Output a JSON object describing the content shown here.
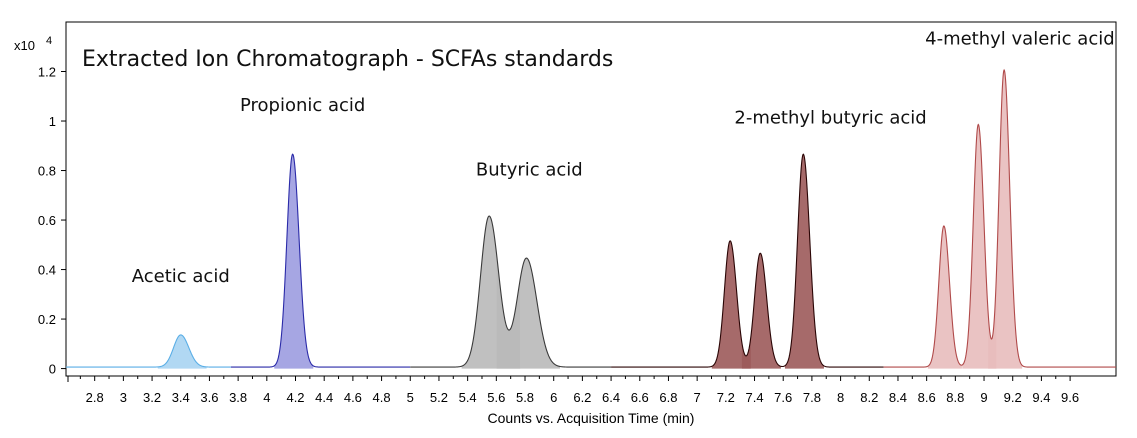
{
  "chart_data": {
    "type": "line",
    "title": "Extracted Ion Chromatograph - SCFAs standards",
    "xlabel": "Counts vs. Acquisition Time (min)",
    "y_multiplier": {
      "base": "x10",
      "exponent": "4"
    },
    "xlim": [
      2.6,
      9.92
    ],
    "ylim": [
      -0.03,
      1.4
    ],
    "x_ticks": [
      "2.8",
      "3",
      "3.2",
      "3.4",
      "3.6",
      "3.8",
      "4",
      "4.2",
      "4.4",
      "4.6",
      "4.8",
      "5",
      "5.2",
      "5.4",
      "5.6",
      "5.8",
      "6",
      "6.2",
      "6.4",
      "6.6",
      "6.8",
      "7",
      "7.2",
      "7.4",
      "7.6",
      "7.8",
      "8",
      "8.2",
      "8.4",
      "8.6",
      "8.8",
      "9",
      "9.2",
      "9.4",
      "9.6"
    ],
    "y_ticks": [
      "0",
      "0.2",
      "0.4",
      "0.6",
      "0.8",
      "1",
      "1.2"
    ],
    "series": [
      {
        "name": "Acetic acid",
        "color": "#5aaee6",
        "fill": "#a8d4f2",
        "x_range": [
          2.6,
          3.75
        ],
        "peaks": [
          {
            "rt": 3.4,
            "height": 0.13,
            "width": 0.05
          }
        ]
      },
      {
        "name": "Propionic acid",
        "color": "#2a2aa8",
        "fill": "#9c9ce0",
        "x_range": [
          3.75,
          5.0
        ],
        "peaks": [
          {
            "rt": 4.18,
            "height": 0.86,
            "width": 0.04
          }
        ]
      },
      {
        "name": "Butyric acid",
        "color": "#3a3a3a",
        "fill": "#b9b9b9",
        "x_range": [
          5.0,
          6.4
        ],
        "peaks": [
          {
            "rt": 5.55,
            "height": 0.61,
            "width": 0.06
          },
          {
            "rt": 5.81,
            "height": 0.44,
            "width": 0.065
          }
        ]
      },
      {
        "name": "2-methyl butyric acid",
        "color": "#2a0505",
        "fill": "#9c5a5a",
        "x_range": [
          6.4,
          8.3
        ],
        "peaks": [
          {
            "rt": 7.23,
            "height": 0.51,
            "width": 0.04
          },
          {
            "rt": 7.44,
            "height": 0.46,
            "width": 0.04
          },
          {
            "rt": 7.74,
            "height": 0.86,
            "width": 0.04
          }
        ]
      },
      {
        "name": "4-methyl valeric acid",
        "color": "#b04a4a",
        "fill": "#e8bcbc",
        "x_range": [
          8.3,
          9.92
        ],
        "peaks": [
          {
            "rt": 8.72,
            "height": 0.57,
            "width": 0.035
          },
          {
            "rt": 8.96,
            "height": 0.98,
            "width": 0.035
          },
          {
            "rt": 9.14,
            "height": 1.2,
            "width": 0.035
          }
        ]
      }
    ],
    "annotations": [
      {
        "text": "Acetic acid",
        "x": 3.4,
        "y": 0.35
      },
      {
        "text": "Propionic acid",
        "x": 4.25,
        "y": 1.04
      },
      {
        "text": "Butyric acid",
        "x": 5.83,
        "y": 0.78
      },
      {
        "text": "2-methyl butyric acid",
        "x": 7.93,
        "y": 0.99
      },
      {
        "text": "4-methyl valeric acid",
        "x": 9.25,
        "y": 1.31
      }
    ]
  }
}
